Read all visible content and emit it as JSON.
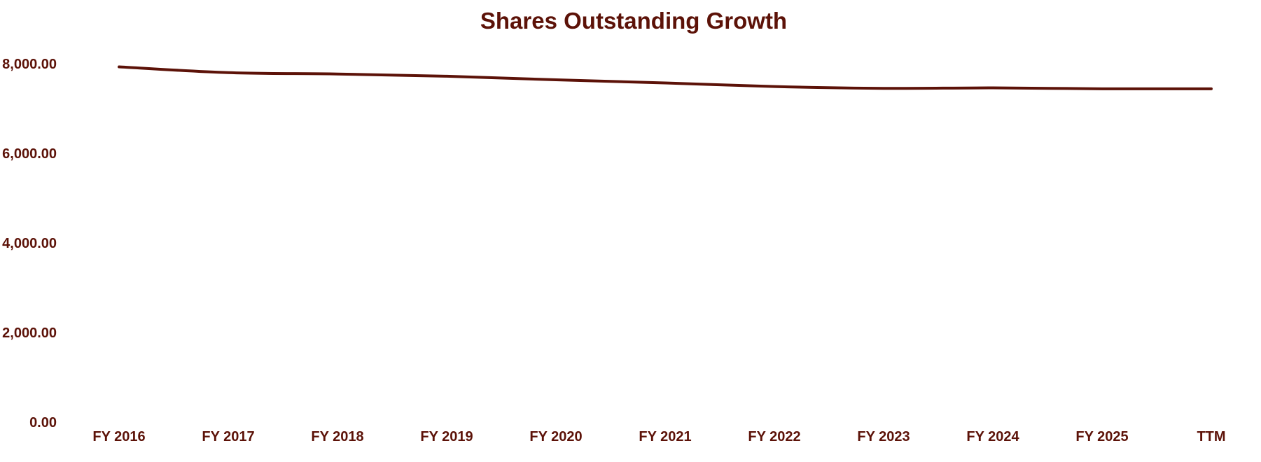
{
  "colors": {
    "primary": "#5c1208",
    "background": "#ffffff"
  },
  "chart_data": {
    "type": "line",
    "title": "Shares Outstanding Growth",
    "xlabel": "",
    "ylabel": "",
    "categories": [
      "FY 2016",
      "FY 2017",
      "FY 2018",
      "FY 2019",
      "FY 2020",
      "FY 2021",
      "FY 2022",
      "FY 2023",
      "FY 2024",
      "FY 2025",
      "TTM"
    ],
    "series": [
      {
        "values": [
          7930,
          7800,
          7770,
          7720,
          7640,
          7570,
          7490,
          7450,
          7460,
          7440,
          7440
        ]
      }
    ],
    "ylim": [
      0,
      8000
    ],
    "yticks": [
      0,
      2000,
      4000,
      6000,
      8000
    ],
    "ytick_labels": [
      "0.00",
      "2,000.00",
      "4,000.00",
      "6,000.00",
      "8,000.00"
    ],
    "grid": false,
    "legend": "none"
  }
}
